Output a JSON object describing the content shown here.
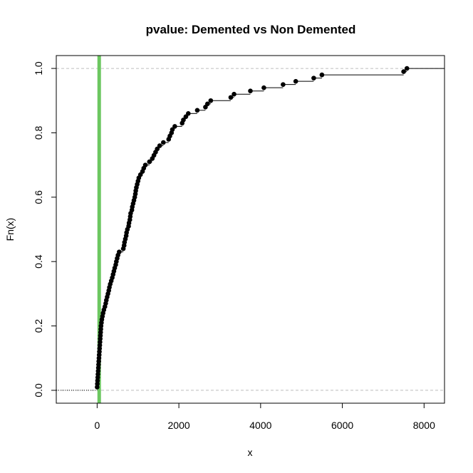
{
  "chart_data": {
    "type": "line",
    "subtype": "empirical-cdf-step",
    "title": "pvalue: Demented vs Non Demented",
    "xlabel": "x",
    "ylabel": "Fn(x)",
    "xlim": [
      -1000,
      8500
    ],
    "ylim": [
      -0.04,
      1.04
    ],
    "xticks": [
      0,
      2000,
      4000,
      6000,
      8000
    ],
    "xtick_labels": [
      "0",
      "2000",
      "4000",
      "6000",
      "8000"
    ],
    "yticks": [
      0.0,
      0.2,
      0.4,
      0.6,
      0.8,
      1.0
    ],
    "ytick_labels": [
      "0.0",
      "0.2",
      "0.4",
      "0.6",
      "0.8",
      "1.0"
    ],
    "reference_hlines": [
      0,
      1
    ],
    "reference_vline": {
      "x": 50,
      "color": "#6cc760"
    },
    "grid": false,
    "legend": "none",
    "colors": {
      "points": "#000000",
      "step_line": "#000000",
      "ref_lines": "#bebebe",
      "vline": "#6cc760"
    },
    "series": [
      {
        "points": [
          [
            0,
            0.01
          ],
          [
            5,
            0.02
          ],
          [
            10,
            0.03
          ],
          [
            15,
            0.04
          ],
          [
            20,
            0.05
          ],
          [
            25,
            0.06
          ],
          [
            30,
            0.07
          ],
          [
            35,
            0.08
          ],
          [
            40,
            0.09
          ],
          [
            45,
            0.1
          ],
          [
            50,
            0.11
          ],
          [
            55,
            0.12
          ],
          [
            60,
            0.13
          ],
          [
            65,
            0.14
          ],
          [
            70,
            0.15
          ],
          [
            75,
            0.16
          ],
          [
            80,
            0.17
          ],
          [
            85,
            0.18
          ],
          [
            90,
            0.19
          ],
          [
            95,
            0.2
          ],
          [
            105,
            0.21
          ],
          [
            115,
            0.22
          ],
          [
            130,
            0.23
          ],
          [
            145,
            0.24
          ],
          [
            165,
            0.25
          ],
          [
            190,
            0.26
          ],
          [
            210,
            0.27
          ],
          [
            225,
            0.28
          ],
          [
            245,
            0.29
          ],
          [
            265,
            0.3
          ],
          [
            285,
            0.31
          ],
          [
            300,
            0.32
          ],
          [
            320,
            0.33
          ],
          [
            345,
            0.34
          ],
          [
            370,
            0.35
          ],
          [
            390,
            0.36
          ],
          [
            410,
            0.37
          ],
          [
            430,
            0.38
          ],
          [
            455,
            0.39
          ],
          [
            470,
            0.4
          ],
          [
            490,
            0.41
          ],
          [
            510,
            0.42
          ],
          [
            540,
            0.43
          ],
          [
            640,
            0.44
          ],
          [
            660,
            0.45
          ],
          [
            670,
            0.46
          ],
          [
            690,
            0.47
          ],
          [
            710,
            0.48
          ],
          [
            720,
            0.49
          ],
          [
            740,
            0.5
          ],
          [
            770,
            0.51
          ],
          [
            780,
            0.52
          ],
          [
            800,
            0.53
          ],
          [
            810,
            0.54
          ],
          [
            820,
            0.55
          ],
          [
            850,
            0.56
          ],
          [
            860,
            0.57
          ],
          [
            880,
            0.58
          ],
          [
            900,
            0.59
          ],
          [
            920,
            0.6
          ],
          [
            935,
            0.61
          ],
          [
            945,
            0.62
          ],
          [
            960,
            0.63
          ],
          [
            980,
            0.64
          ],
          [
            1000,
            0.65
          ],
          [
            1020,
            0.66
          ],
          [
            1060,
            0.67
          ],
          [
            1110,
            0.68
          ],
          [
            1140,
            0.69
          ],
          [
            1180,
            0.7
          ],
          [
            1280,
            0.71
          ],
          [
            1350,
            0.72
          ],
          [
            1390,
            0.73
          ],
          [
            1430,
            0.74
          ],
          [
            1470,
            0.75
          ],
          [
            1530,
            0.76
          ],
          [
            1620,
            0.77
          ],
          [
            1750,
            0.78
          ],
          [
            1780,
            0.79
          ],
          [
            1820,
            0.8
          ],
          [
            1840,
            0.81
          ],
          [
            1900,
            0.82
          ],
          [
            2080,
            0.83
          ],
          [
            2110,
            0.84
          ],
          [
            2170,
            0.85
          ],
          [
            2230,
            0.86
          ],
          [
            2450,
            0.87
          ],
          [
            2650,
            0.88
          ],
          [
            2700,
            0.89
          ],
          [
            2780,
            0.9
          ],
          [
            3270,
            0.91
          ],
          [
            3350,
            0.92
          ],
          [
            3750,
            0.93
          ],
          [
            4080,
            0.94
          ],
          [
            4550,
            0.95
          ],
          [
            4860,
            0.96
          ],
          [
            5300,
            0.97
          ],
          [
            5500,
            0.98
          ],
          [
            7500,
            0.99
          ],
          [
            7580,
            1.0
          ]
        ]
      }
    ]
  }
}
